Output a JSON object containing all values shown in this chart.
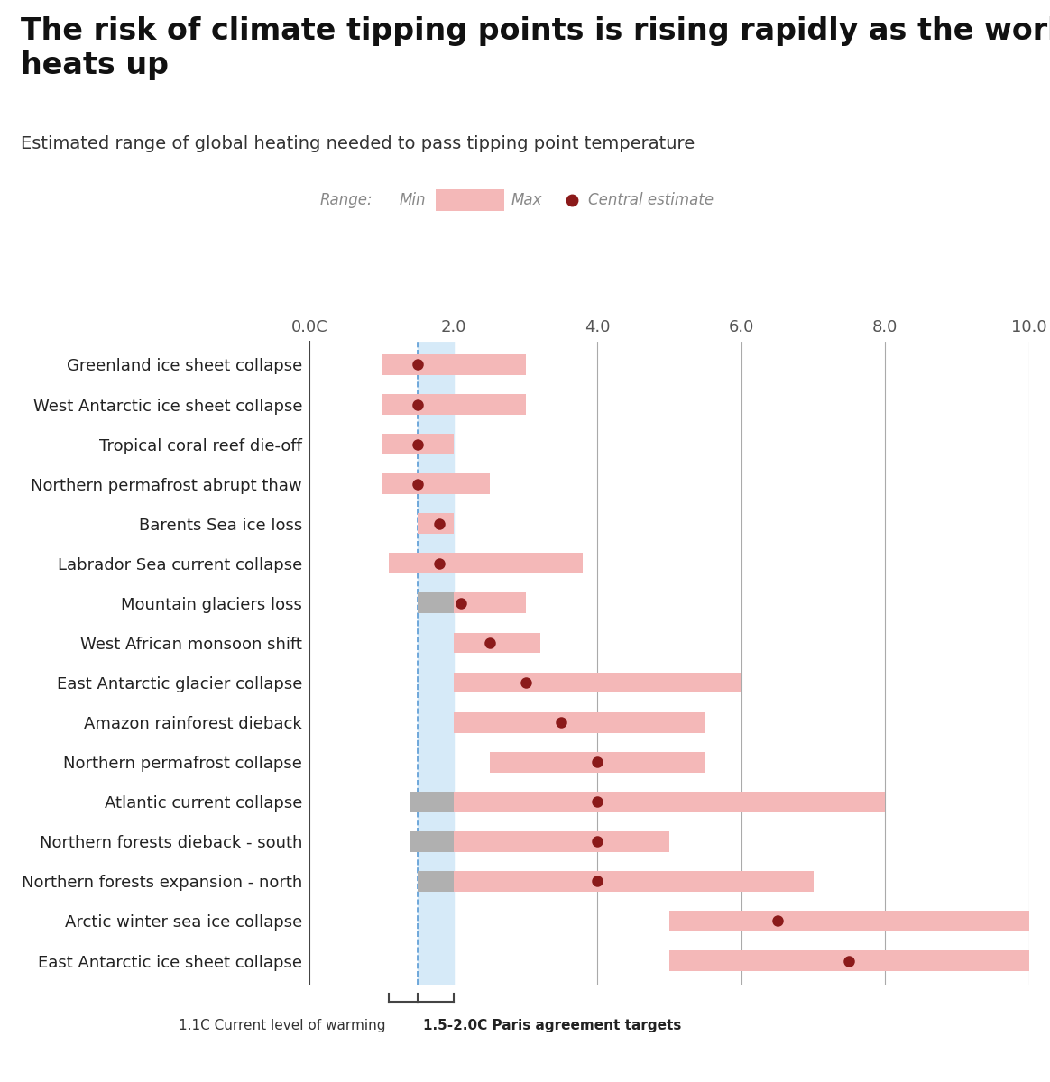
{
  "title": "The risk of climate tipping points is rising rapidly as the world\nheats up",
  "subtitle": "Estimated range of global heating needed to pass tipping point temperature",
  "categories": [
    "Greenland ice sheet collapse",
    "West Antarctic ice sheet collapse",
    "Tropical coral reef die-off",
    "Northern permafrost abrupt thaw",
    "Barents Sea ice loss",
    "Labrador Sea current collapse",
    "Mountain glaciers loss",
    "West African monsoon shift",
    "East Antarctic glacier collapse",
    "Amazon rainforest dieback",
    "Northern permafrost collapse",
    "Atlantic current collapse",
    "Northern forests dieback - south",
    "Northern forests expansion - north",
    "Arctic winter sea ice collapse",
    "East Antarctic ice sheet collapse"
  ],
  "bar_min": [
    1.0,
    1.0,
    1.0,
    1.0,
    1.5,
    1.1,
    1.5,
    2.0,
    2.0,
    2.0,
    2.5,
    1.4,
    1.4,
    1.5,
    5.0,
    5.0
  ],
  "bar_max": [
    3.0,
    3.0,
    2.0,
    2.5,
    2.0,
    3.8,
    3.0,
    3.2,
    6.0,
    5.5,
    5.5,
    8.0,
    5.0,
    7.0,
    10.0,
    10.0
  ],
  "central": [
    1.5,
    1.5,
    1.5,
    1.5,
    1.8,
    1.8,
    2.1,
    2.5,
    3.0,
    3.5,
    4.0,
    4.0,
    4.0,
    4.0,
    6.5,
    7.5
  ],
  "bar_has_grey_left": [
    false,
    false,
    false,
    false,
    false,
    false,
    true,
    false,
    false,
    false,
    false,
    true,
    true,
    true,
    false,
    false
  ],
  "grey_left_min": [
    0,
    0,
    0,
    0,
    0,
    0,
    1.5,
    0,
    0,
    0,
    0,
    1.4,
    1.4,
    1.5,
    0,
    0
  ],
  "grey_left_max": [
    0,
    0,
    0,
    0,
    0,
    0,
    2.0,
    0,
    0,
    0,
    0,
    2.0,
    2.0,
    2.0,
    0,
    0
  ],
  "xlim": [
    0.0,
    10.0
  ],
  "xticks": [
    0.0,
    2.0,
    4.0,
    6.0,
    8.0,
    10.0
  ],
  "xticklabels": [
    "0.0C",
    "2.0",
    "4.0",
    "6.0",
    "8.0",
    "10.0"
  ],
  "current_warming": 1.1,
  "paris_min": 1.5,
  "paris_max": 2.0,
  "bar_color": "#f4b8b8",
  "grey_color": "#b0b0b0",
  "dot_color": "#8b1a1a",
  "paris_shade_color": "#d6eaf8",
  "dashed_line_color": "#5b9bd5",
  "axis_line_color": "#444444",
  "grid_color": "#aaaaaa",
  "background_color": "#ffffff",
  "title_fontsize": 24,
  "subtitle_fontsize": 14,
  "label_fontsize": 13,
  "tick_fontsize": 13
}
